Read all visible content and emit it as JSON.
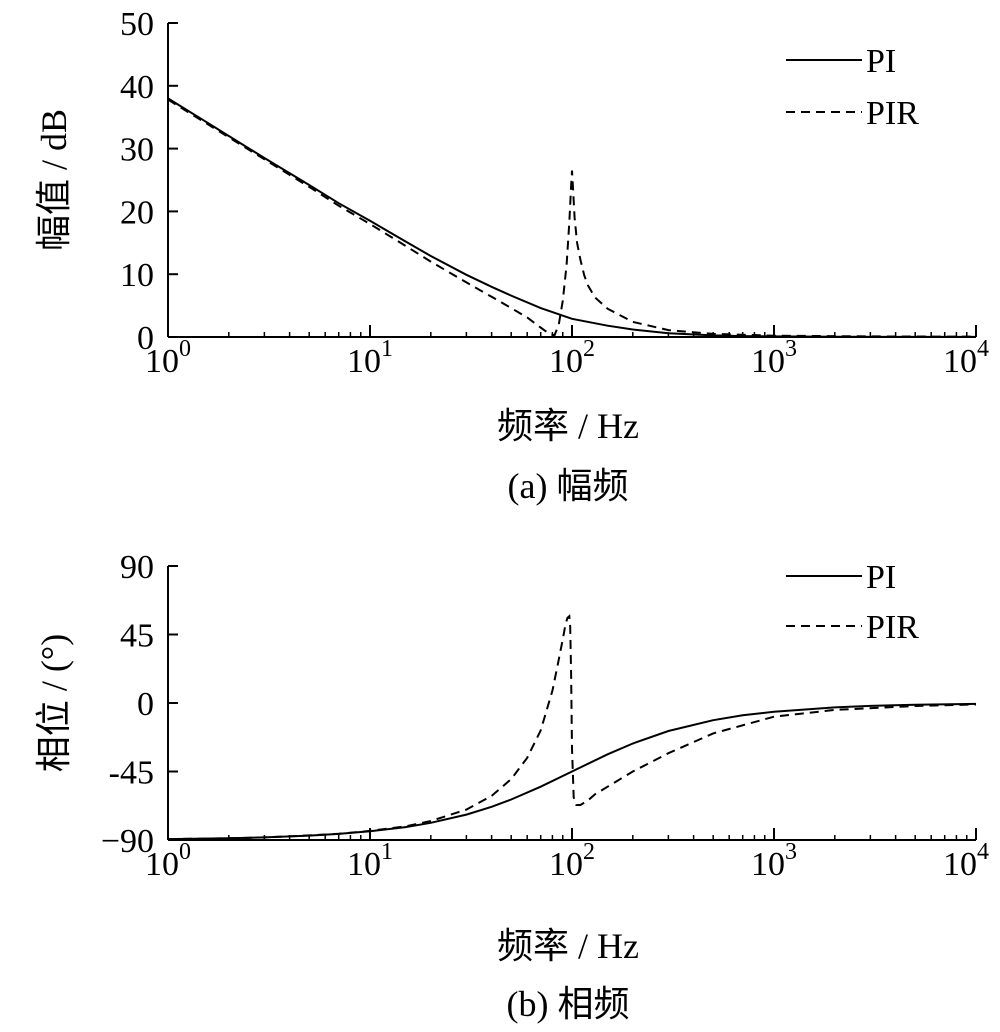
{
  "chart_data": [
    {
      "type": "line",
      "caption": "(a) 幅频",
      "xlabel": "频率 / Hz",
      "ylabel": "幅值 / dB",
      "xscale": "log",
      "xlim": [
        1,
        10000
      ],
      "ylim": [
        0,
        50
      ],
      "x_ticks": [
        1,
        10,
        100,
        1000,
        10000
      ],
      "x_tick_labels": [
        {
          "base": "10",
          "exp": "0"
        },
        {
          "base": "10",
          "exp": "1"
        },
        {
          "base": "10",
          "exp": "2"
        },
        {
          "base": "10",
          "exp": "3"
        },
        {
          "base": "10",
          "exp": "4"
        }
      ],
      "y_ticks": [
        0,
        10,
        20,
        30,
        40,
        50
      ],
      "y_tick_labels": [
        "0",
        "10",
        "20",
        "30",
        "40",
        "50"
      ],
      "grid": false,
      "legend_position": "top-right",
      "series": [
        {
          "name": "PI",
          "style": "solid",
          "x": [
            1,
            1.5,
            2,
            3,
            5,
            7,
            10,
            15,
            20,
            30,
            40,
            50,
            70,
            100,
            150,
            200,
            300,
            500,
            700,
            1000,
            2000,
            5000,
            10000
          ],
          "y": [
            38,
            34.5,
            32,
            28.5,
            24.2,
            21.3,
            18.5,
            15.2,
            12.9,
            9.9,
            8.0,
            6.6,
            4.6,
            2.9,
            1.8,
            1.2,
            0.6,
            0.25,
            0.15,
            0.1,
            0.05,
            0.02,
            0.01
          ]
        },
        {
          "name": "PIR",
          "style": "dashed",
          "x": [
            1,
            2,
            3,
            5,
            7,
            10,
            15,
            20,
            30,
            40,
            50,
            60,
            70,
            78,
            82,
            86,
            90,
            94,
            97,
            99,
            100,
            101,
            103,
            106,
            110,
            115,
            120,
            130,
            150,
            200,
            300,
            500,
            1000,
            3000,
            10000
          ],
          "y": [
            37.8,
            31.8,
            28.3,
            23.9,
            20.9,
            18.0,
            14.5,
            12.0,
            8.7,
            6.4,
            4.6,
            3.1,
            1.5,
            0.4,
            0.3,
            2.0,
            5.8,
            11.5,
            18.2,
            24.0,
            26.5,
            24.0,
            19.0,
            15.0,
            12.3,
            9.8,
            8.2,
            6.3,
            4.5,
            2.4,
            1.1,
            0.5,
            0.2,
            0.1,
            0.05
          ]
        }
      ]
    },
    {
      "type": "line",
      "caption": "(b) 相频",
      "xlabel": "频率 / Hz",
      "ylabel": "相位 / (°)",
      "xscale": "log",
      "xlim": [
        1,
        10000
      ],
      "ylim": [
        -90,
        90
      ],
      "x_ticks": [
        1,
        10,
        100,
        1000,
        10000
      ],
      "x_tick_labels": [
        {
          "base": "10",
          "exp": "0"
        },
        {
          "base": "10",
          "exp": "1"
        },
        {
          "base": "10",
          "exp": "2"
        },
        {
          "base": "10",
          "exp": "3"
        },
        {
          "base": "10",
          "exp": "4"
        }
      ],
      "y_ticks": [
        -90,
        -45,
        0,
        45,
        90
      ],
      "y_tick_labels": [
        "−90",
        "-45",
        "0",
        "45",
        "90"
      ],
      "grid": false,
      "legend_position": "top-right",
      "series": [
        {
          "name": "PI",
          "style": "solid",
          "x": [
            1,
            2,
            3,
            5,
            7,
            10,
            15,
            20,
            30,
            40,
            50,
            70,
            100,
            150,
            200,
            300,
            500,
            700,
            1000,
            2000,
            3000,
            5000,
            10000
          ],
          "y": [
            -89.4,
            -88.9,
            -88.3,
            -87.1,
            -86.0,
            -84.3,
            -81.5,
            -78.7,
            -73.3,
            -68.2,
            -63.4,
            -55.0,
            -45.0,
            -33.7,
            -26.6,
            -18.4,
            -11.3,
            -8.1,
            -5.7,
            -2.9,
            -1.9,
            -1.1,
            -0.6
          ]
        },
        {
          "name": "PIR",
          "style": "dashed",
          "x": [
            1,
            2,
            3,
            5,
            7,
            10,
            15,
            20,
            30,
            40,
            50,
            60,
            70,
            80,
            85,
            90,
            93,
            95,
            97,
            98,
            99,
            100,
            102,
            105,
            110,
            120,
            130,
            150,
            200,
            300,
            500,
            1000,
            2000,
            5000,
            10000
          ],
          "y": [
            -89.4,
            -88.9,
            -88.3,
            -87.0,
            -85.9,
            -84.0,
            -81.0,
            -77.5,
            -70.0,
            -61.0,
            -50.0,
            -36.0,
            -18.0,
            8.0,
            25.0,
            42.0,
            52.0,
            56.0,
            57.0,
            50.0,
            20.0,
            -30.0,
            -62.0,
            -67.0,
            -67.0,
            -64.0,
            -60.0,
            -55.0,
            -45.0,
            -33.0,
            -20.0,
            -9.0,
            -4.5,
            -2.0,
            -1.0
          ]
        }
      ]
    }
  ]
}
